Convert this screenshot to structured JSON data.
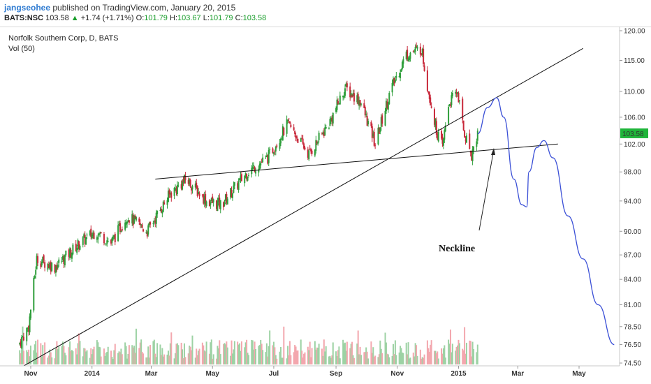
{
  "header": {
    "author": "jangseohee",
    "published": "published on TradingView.com, January 20, 2015",
    "symbol": "BATS:NSC",
    "last": "103.58",
    "change_arrow": "▲",
    "change": "+1.74 (+1.71%)",
    "open_label": "O:",
    "open": "101.79",
    "high_label": "H:",
    "high": "103.67",
    "low_label": "L:",
    "low": "101.79",
    "close_label": "C:",
    "close": "103.58"
  },
  "chart_data": {
    "type": "candlestick",
    "title": "Norfolk Southern Corp, D, BATS",
    "subtitle": "Vol (50)",
    "annotation": "Neckline",
    "y_ticks": [
      "120.00",
      "115.00",
      "110.00",
      "106.00",
      "102.00",
      "98.00",
      "94.00",
      "90.00",
      "87.00",
      "84.00",
      "81.00",
      "78.50",
      "76.50",
      "74.50"
    ],
    "y_tick_values": [
      120,
      115,
      110,
      106,
      102,
      98,
      94,
      90,
      87,
      84,
      81,
      78.5,
      76.5,
      74.5
    ],
    "y_scale": "log",
    "x_ticks": [
      "Nov",
      "2014",
      "Mar",
      "May",
      "Jul",
      "Sep",
      "Nov",
      "2015",
      "Mar",
      "May"
    ],
    "current_price_label": "103.58",
    "price_path_anchors": [
      {
        "date": "2013-10-20",
        "price": 76.5
      },
      {
        "date": "2013-10-30",
        "price": 78.5
      },
      {
        "date": "2013-11-07",
        "price": 86.5
      },
      {
        "date": "2013-11-25",
        "price": 85.5
      },
      {
        "date": "2013-12-20",
        "price": 88.5
      },
      {
        "date": "2014-01-05",
        "price": 90.0
      },
      {
        "date": "2014-01-20",
        "price": 88.5
      },
      {
        "date": "2014-02-05",
        "price": 92.0
      },
      {
        "date": "2014-02-25",
        "price": 90.0
      },
      {
        "date": "2014-03-20",
        "price": 95.0
      },
      {
        "date": "2014-04-05",
        "price": 97.0
      },
      {
        "date": "2014-04-25",
        "price": 94.0
      },
      {
        "date": "2014-05-10",
        "price": 93.5
      },
      {
        "date": "2014-06-05",
        "price": 98.0
      },
      {
        "date": "2014-06-25",
        "price": 100.0
      },
      {
        "date": "2014-07-15",
        "price": 105.0
      },
      {
        "date": "2014-08-05",
        "price": 100.5
      },
      {
        "date": "2014-08-25",
        "price": 105.0
      },
      {
        "date": "2014-09-10",
        "price": 110.5
      },
      {
        "date": "2014-09-25",
        "price": 108.5
      },
      {
        "date": "2014-10-10",
        "price": 102.0
      },
      {
        "date": "2014-10-25",
        "price": 110.0
      },
      {
        "date": "2014-11-10",
        "price": 116.0
      },
      {
        "date": "2014-11-25",
        "price": 117.0
      },
      {
        "date": "2014-12-01",
        "price": 111.0
      },
      {
        "date": "2014-12-10",
        "price": 104.0
      },
      {
        "date": "2014-12-16",
        "price": 101.5
      },
      {
        "date": "2014-12-22",
        "price": 108.0
      },
      {
        "date": "2014-12-31",
        "price": 110.0
      },
      {
        "date": "2015-01-06",
        "price": 104.0
      },
      {
        "date": "2015-01-14",
        "price": 100.5
      },
      {
        "date": "2015-01-20",
        "price": 103.58
      }
    ],
    "trendlines": [
      {
        "name": "rising-trendline",
        "from": {
          "date": "2013-10-25",
          "price": 74.2
        },
        "to": {
          "date": "2015-05-05",
          "price": 117.0
        }
      },
      {
        "name": "neckline",
        "from": {
          "date": "2014-03-05",
          "price": 97.0
        },
        "to": {
          "date": "2015-04-10",
          "price": 102.0
        }
      }
    ],
    "projection": [
      {
        "date": "2015-01-20",
        "price": 103.5
      },
      {
        "date": "2015-01-30",
        "price": 107.5
      },
      {
        "date": "2015-02-08",
        "price": 109.0
      },
      {
        "date": "2015-02-15",
        "price": 106.0
      },
      {
        "date": "2015-02-25",
        "price": 97.0
      },
      {
        "date": "2015-03-05",
        "price": 93.5
      },
      {
        "date": "2015-03-10",
        "price": 93.2
      },
      {
        "date": "2015-03-12",
        "price": 98.0
      },
      {
        "date": "2015-03-20",
        "price": 101.5
      },
      {
        "date": "2015-03-27",
        "price": 102.5
      },
      {
        "date": "2015-04-05",
        "price": 100.0
      },
      {
        "date": "2015-04-20",
        "price": 92.0
      },
      {
        "date": "2015-05-05",
        "price": 86.5
      },
      {
        "date": "2015-05-20",
        "price": 81.0
      },
      {
        "date": "2015-06-05",
        "price": 76.5
      }
    ],
    "colors": {
      "up": "#2e9e3a",
      "down": "#c8283a",
      "vol_up": "#9dd2a4",
      "vol_down": "#f3a7ae",
      "projection": "#3a4fd6",
      "trendline": "#111111",
      "price_tag": "#1fb53a"
    }
  }
}
